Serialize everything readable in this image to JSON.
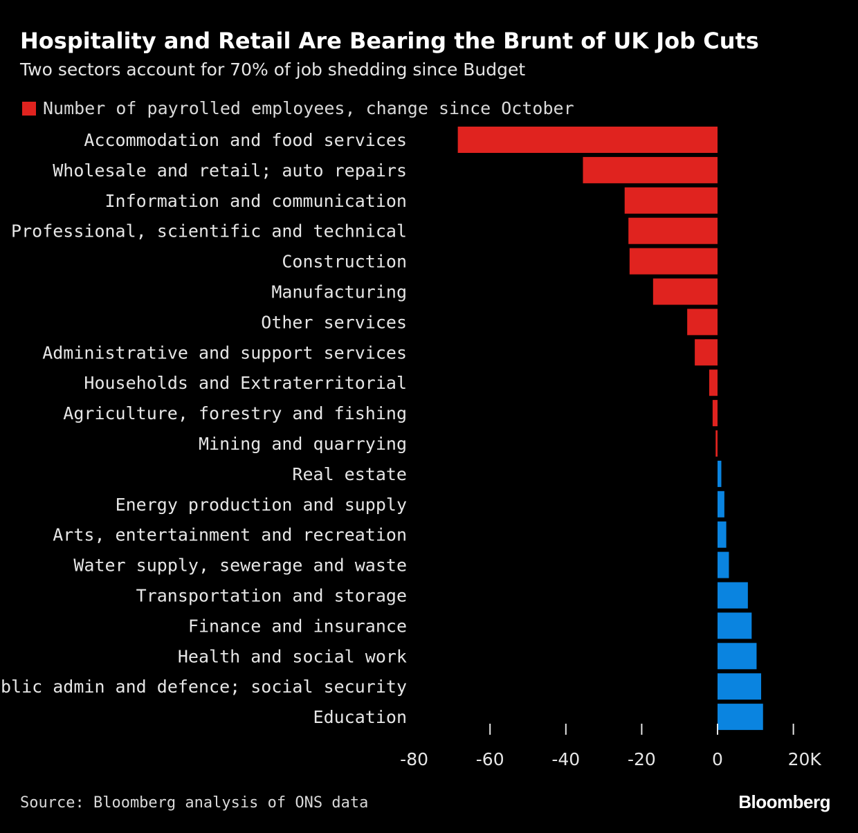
{
  "title": "Hospitality and Retail Are Bearing the Brunt of UK Job Cuts",
  "subtitle": "Two sectors account for 70% of job shedding since Budget",
  "source": "Source: Bloomberg analysis of ONS data",
  "brand": "Bloomberg",
  "colors": {
    "negative": "#e0231f",
    "positive": "#0a84e0",
    "background": "#000000"
  },
  "chart_data": {
    "type": "bar",
    "orientation": "horizontal",
    "legend": {
      "label": "Number of payrolled employees, change since October",
      "placement": "top-left"
    },
    "categories": [
      "Accommodation and food services",
      "Wholesale and retail; auto repairs",
      "Information and communication",
      "Professional, scientific and technical",
      "Construction",
      "Manufacturing",
      "Other services",
      "Administrative and support services",
      "Households and Extraterritorial",
      "Agriculture, forestry and fishing",
      "Mining and quarrying",
      "Real estate",
      "Energy production and supply",
      "Arts, entertainment and recreation",
      "Water supply, sewerage and waste",
      "Transportation and storage",
      "Finance and insurance",
      "Health and social work",
      "Public admin and defence; social security",
      "Education"
    ],
    "values": [
      -68.5,
      -35.5,
      -24.5,
      -23.5,
      -23.2,
      -17,
      -8,
      -6,
      -2.2,
      -1.3,
      -0.5,
      1,
      1.8,
      2.3,
      3,
      8,
      9,
      10.3,
      11.5,
      12
    ],
    "x_ticks": [
      {
        "value": -80,
        "label": "-80"
      },
      {
        "value": -60,
        "label": "-60"
      },
      {
        "value": -40,
        "label": "-40"
      },
      {
        "value": -20,
        "label": "-20"
      },
      {
        "value": 0,
        "label": "0"
      },
      {
        "value": 20,
        "label": "20K"
      }
    ],
    "xlim": [
      -80,
      20
    ],
    "grid": false
  }
}
